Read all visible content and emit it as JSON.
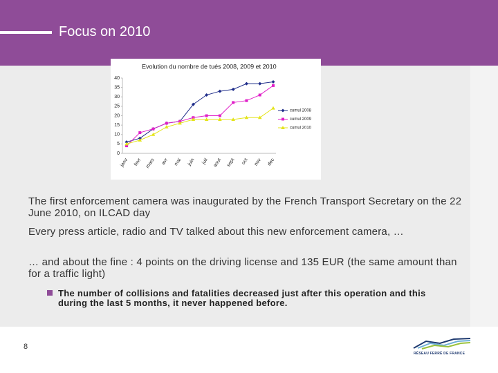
{
  "header": {
    "title": "Focus on 2010"
  },
  "chart_data": {
    "type": "line",
    "title": "Evolution du nombre de tués 2008, 2009 et 2010",
    "categories": [
      "janv",
      "fevr",
      "mars",
      "avr",
      "mai",
      "juin",
      "juil",
      "aout",
      "sept",
      "oct",
      "nov",
      "dec"
    ],
    "series": [
      {
        "name": "cumul 2008",
        "color": "#1f2d8a",
        "marker": "diamond",
        "values": [
          6,
          8,
          13,
          16,
          17,
          26,
          31,
          33,
          34,
          37,
          37,
          38
        ]
      },
      {
        "name": "cumul 2009",
        "color": "#e020c8",
        "marker": "square",
        "values": [
          4,
          11,
          13,
          16,
          17,
          19,
          20,
          20,
          27,
          28,
          31,
          36
        ]
      },
      {
        "name": "cumul 2010",
        "color": "#e4e41a",
        "marker": "triangle",
        "values": [
          5,
          7,
          10,
          14,
          16,
          18,
          18,
          18,
          18,
          19,
          19,
          24
        ]
      }
    ],
    "ylim": [
      0,
      40
    ],
    "yticks": [
      0,
      5,
      10,
      15,
      20,
      25,
      30,
      35,
      40
    ],
    "grid": false,
    "legend": "right"
  },
  "paragraphs": [
    "The first enforcement camera was inaugurated by the French Transport Secretary on the 22 June 2010, on ILCAD day",
    "Every press article, radio and TV talked about this new enforcement camera, …",
    "… and about the fine : 4 points on the driving license and 135 EUR (the same amount than for a traffic light)"
  ],
  "bullet": "The number of collisions and fatalities decreased just after this operation and this during the last 5 months, it never happened before.",
  "footer": {
    "page": "8",
    "logo": "RÉSEAU FERRÉ DE FRANCE"
  }
}
